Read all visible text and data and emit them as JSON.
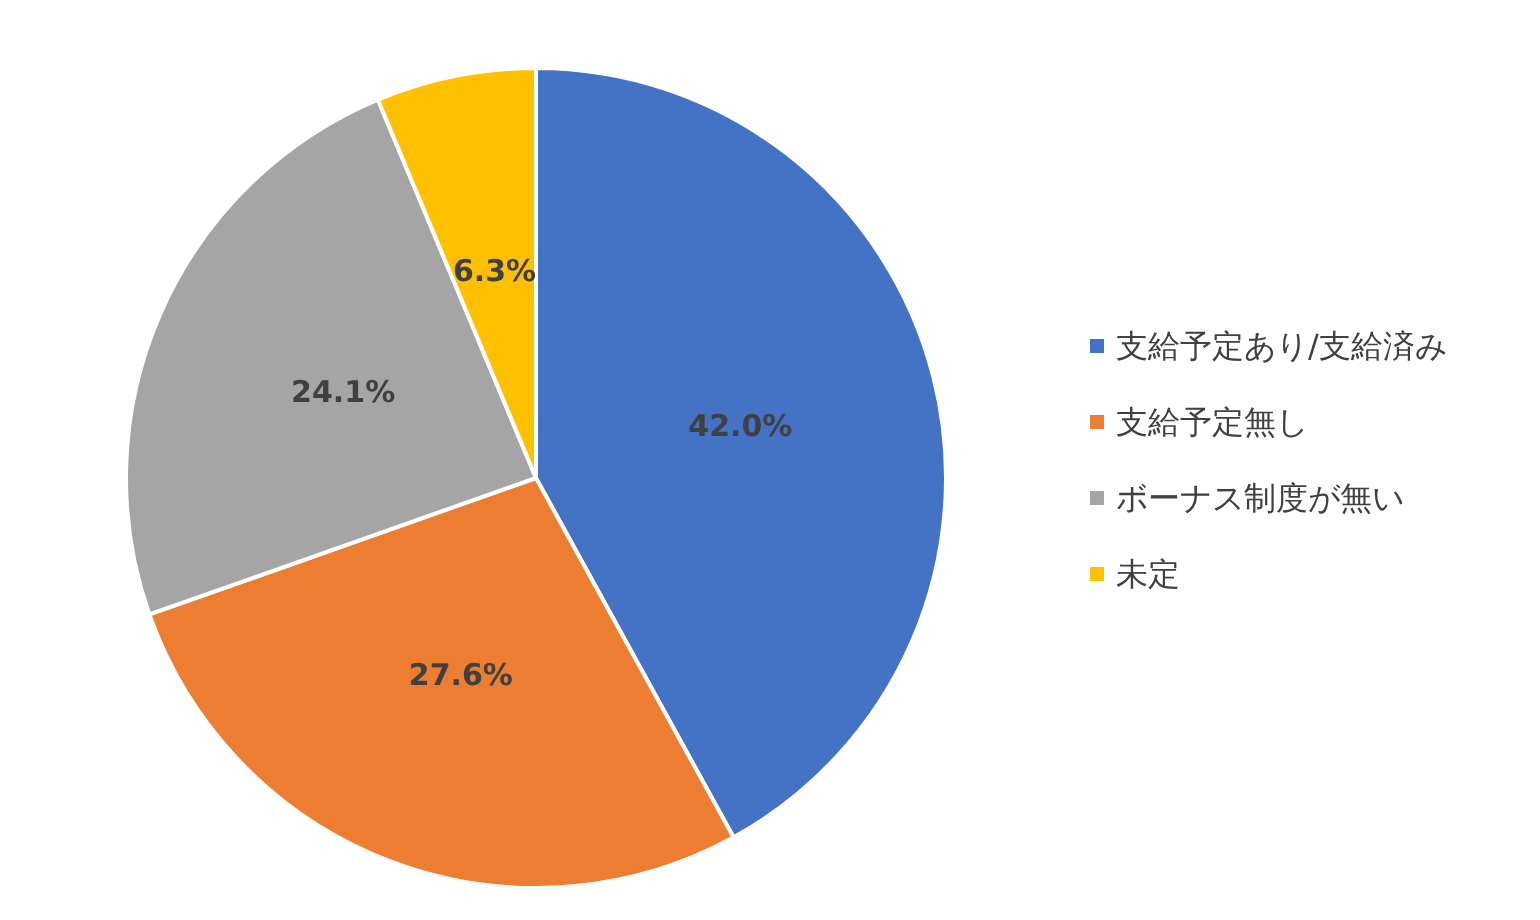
{
  "chart_data": {
    "type": "pie",
    "categories": [
      "支給予定あり/支給済み",
      "支給予定無し",
      "ボーナス制度が無い",
      "未定"
    ],
    "values": [
      42.0,
      27.6,
      24.1,
      6.3
    ],
    "colors": [
      "#4472c4",
      "#ed7d31",
      "#a5a5a5",
      "#ffc000"
    ],
    "value_labels": [
      "42.0%",
      "27.6%",
      "24.1%",
      "6.3%"
    ],
    "legend": "right"
  }
}
